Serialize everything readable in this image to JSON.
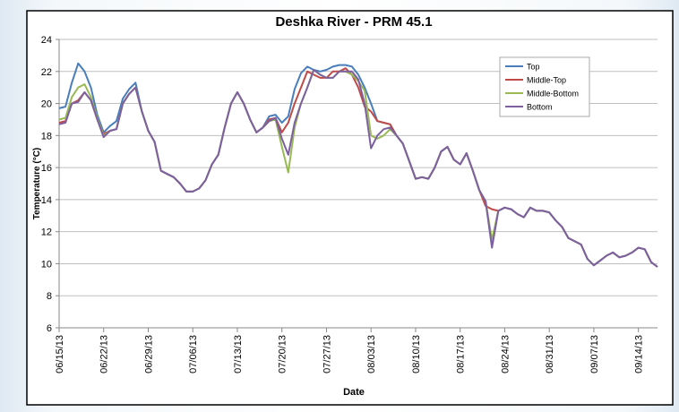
{
  "chart_data": {
    "type": "line",
    "title": "Deshka River - PRM 45.1",
    "x_label": "Date",
    "y_label": "Temperature (°C)",
    "categories": [
      "06/15/13",
      null,
      null,
      null,
      null,
      null,
      null,
      "06/22/13",
      null,
      null,
      null,
      null,
      null,
      null,
      "06/29/13",
      null,
      null,
      null,
      null,
      null,
      null,
      "07/06/13",
      null,
      null,
      null,
      null,
      null,
      null,
      "07/13/13",
      null,
      null,
      null,
      null,
      null,
      null,
      "07/20/13",
      null,
      null,
      null,
      null,
      null,
      null,
      "07/27/13",
      null,
      null,
      null,
      null,
      null,
      null,
      "08/03/13",
      null,
      null,
      null,
      null,
      null,
      null,
      "08/10/13",
      null,
      null,
      null,
      null,
      null,
      null,
      "08/17/13",
      null,
      null,
      null,
      null,
      null,
      null,
      "08/24/13",
      null,
      null,
      null,
      null,
      null,
      null,
      "08/31/13",
      null,
      null,
      null,
      null,
      null,
      null,
      "09/07/13",
      null,
      null,
      null,
      null,
      null,
      null,
      "09/14/13",
      null,
      null,
      null
    ],
    "ylim": [
      6,
      24
    ],
    "yticks": [
      6,
      8,
      10,
      12,
      14,
      16,
      18,
      20,
      22,
      24
    ],
    "grid": true,
    "legend": "upper right",
    "series": [
      {
        "name": "Top",
        "color": "#4a7ebb",
        "values": [
          19.7,
          19.8,
          21.3,
          22.5,
          22.0,
          21.0,
          19.3,
          18.2,
          18.6,
          18.9,
          20.3,
          20.9,
          21.3,
          19.5,
          18.3,
          17.6,
          15.8,
          15.6,
          15.4,
          15.0,
          14.5,
          14.5,
          14.7,
          15.2,
          16.2,
          16.8,
          18.5,
          20.0,
          20.7,
          20.0,
          19.0,
          18.2,
          18.5,
          19.2,
          19.3,
          18.8,
          19.2,
          20.9,
          21.9,
          22.3,
          22.1,
          22.0,
          22.1,
          22.3,
          22.4,
          22.4,
          22.3,
          21.8,
          21.0,
          20.0,
          18.9,
          18.8,
          18.7,
          18.0,
          17.5,
          16.4,
          15.3,
          15.4,
          15.3,
          16.0,
          17.0,
          17.3,
          16.5,
          16.2,
          16.9,
          15.8,
          14.6,
          13.9,
          11.3,
          13.3,
          13.5,
          13.4,
          13.1,
          12.9,
          13.5,
          13.3,
          13.3,
          13.2,
          12.7,
          12.3,
          11.6,
          11.4,
          11.2,
          10.3,
          9.9,
          10.2,
          10.5,
          10.7,
          10.4,
          10.5,
          10.7,
          11.0,
          10.9,
          10.1,
          9.8
        ]
      },
      {
        "name": "Middle-Top",
        "color": "#be4b48",
        "values": [
          18.8,
          18.9,
          20.0,
          20.2,
          20.7,
          20.2,
          19.0,
          18.1,
          18.3,
          18.4,
          20.0,
          20.6,
          21.0,
          19.5,
          18.3,
          17.6,
          15.8,
          15.6,
          15.4,
          15.0,
          14.5,
          14.5,
          14.7,
          15.2,
          16.2,
          16.8,
          18.5,
          20.0,
          20.7,
          20.0,
          19.0,
          18.2,
          18.5,
          19.0,
          19.1,
          18.2,
          18.8,
          20.0,
          21.0,
          22.0,
          21.8,
          21.6,
          21.6,
          22.0,
          22.0,
          22.2,
          21.8,
          21.0,
          19.8,
          19.5,
          18.9,
          18.8,
          18.7,
          18.0,
          17.5,
          16.4,
          15.3,
          15.4,
          15.3,
          16.0,
          17.0,
          17.3,
          16.5,
          16.2,
          16.9,
          15.8,
          14.6,
          13.6,
          13.4,
          13.3,
          13.5,
          13.4,
          13.1,
          12.9,
          13.5,
          13.3,
          13.3,
          13.2,
          12.7,
          12.3,
          11.6,
          11.4,
          11.2,
          10.3,
          9.9,
          10.2,
          10.5,
          10.7,
          10.4,
          10.5,
          10.7,
          11.0,
          10.9,
          10.1,
          9.8
        ]
      },
      {
        "name": "Middle-Bottom",
        "color": "#98b954",
        "values": [
          19.0,
          19.1,
          20.4,
          21.0,
          21.2,
          20.4,
          19.1,
          18.0,
          18.3,
          18.4,
          20.0,
          20.6,
          21.0,
          19.5,
          18.3,
          17.6,
          15.8,
          15.6,
          15.4,
          15.0,
          14.5,
          14.5,
          14.7,
          15.2,
          16.2,
          16.8,
          18.5,
          20.0,
          20.7,
          20.0,
          19.0,
          18.2,
          18.5,
          18.9,
          19.0,
          17.3,
          15.7,
          18.5,
          20.0,
          21.0,
          22.1,
          21.8,
          21.6,
          21.6,
          22.0,
          22.0,
          21.8,
          21.4,
          20.8,
          18.0,
          17.8,
          18.0,
          18.4,
          18.0,
          17.5,
          16.4,
          15.3,
          15.4,
          15.3,
          16.0,
          17.0,
          17.3,
          16.5,
          16.2,
          16.9,
          15.8,
          14.6,
          13.9,
          11.5,
          13.3,
          13.5,
          13.4,
          13.1,
          12.9,
          13.5,
          13.3,
          13.3,
          13.2,
          12.7,
          12.3,
          11.6,
          11.4,
          11.2,
          10.3,
          9.9,
          10.2,
          10.5,
          10.7,
          10.4,
          10.5,
          10.7,
          11.0,
          10.9,
          10.1,
          9.8
        ]
      },
      {
        "name": "Bottom",
        "color": "#7d60a0",
        "values": [
          18.7,
          18.8,
          20.0,
          20.1,
          20.7,
          20.2,
          19.0,
          17.9,
          18.3,
          18.4,
          20.0,
          20.6,
          21.0,
          19.5,
          18.3,
          17.6,
          15.8,
          15.6,
          15.4,
          15.0,
          14.5,
          14.5,
          14.7,
          15.2,
          16.2,
          16.8,
          18.5,
          20.0,
          20.7,
          20.0,
          19.0,
          18.2,
          18.5,
          18.9,
          19.1,
          17.8,
          16.8,
          18.8,
          20.0,
          21.0,
          22.1,
          21.8,
          21.6,
          21.6,
          22.0,
          22.0,
          22.0,
          21.5,
          20.0,
          17.2,
          18.0,
          18.4,
          18.5,
          18.0,
          17.5,
          16.4,
          15.3,
          15.4,
          15.3,
          16.0,
          17.0,
          17.3,
          16.5,
          16.2,
          16.9,
          15.8,
          14.6,
          13.9,
          11.0,
          13.3,
          13.5,
          13.4,
          13.1,
          12.9,
          13.5,
          13.3,
          13.3,
          13.2,
          12.7,
          12.3,
          11.6,
          11.4,
          11.2,
          10.3,
          9.9,
          10.2,
          10.5,
          10.7,
          10.4,
          10.5,
          10.7,
          11.0,
          10.9,
          10.1,
          9.8
        ]
      }
    ]
  }
}
